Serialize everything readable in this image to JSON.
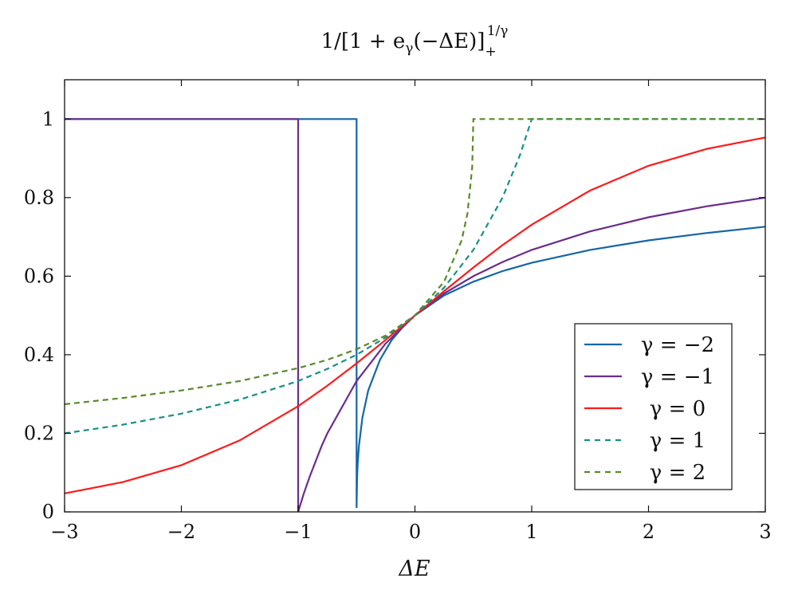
{
  "chart_data": {
    "type": "line",
    "title": {
      "main": "1/[1 + e",
      "sub": "γ",
      "mid": "(−ΔE)]",
      "sub2": "+",
      "sup": "1/γ"
    },
    "xlabel": "ΔE",
    "ylabel": "",
    "xlim": [
      -3,
      3
    ],
    "ylim": [
      0,
      1.1
    ],
    "xticks": [
      -3,
      -2,
      -1,
      0,
      1,
      2,
      3
    ],
    "xtick_labels": [
      "−3",
      "−2",
      "−1",
      "0",
      "1",
      "2",
      "3"
    ],
    "yticks": [
      0,
      0.2,
      0.4,
      0.6,
      0.8,
      1
    ],
    "ytick_labels": [
      "0",
      "0.2",
      "0.4",
      "0.6",
      "0.8",
      "1"
    ],
    "grid": false,
    "legend_position": "bottom-right",
    "series": [
      {
        "name": "γ = −2",
        "color": "#1466a8",
        "dash": false,
        "x": [
          -3,
          -0.5,
          -0.5,
          -0.4999,
          -0.495,
          -0.49,
          -0.48,
          -0.45,
          -0.4,
          -0.3,
          -0.2,
          -0.1,
          0,
          0.25,
          0.5,
          0.75,
          1,
          1.5,
          2,
          2.5,
          3
        ],
        "y": [
          1,
          1,
          0.01,
          0.014,
          0.091,
          0.124,
          0.167,
          0.24,
          0.309,
          0.387,
          0.437,
          0.472,
          0.5,
          0.551,
          0.586,
          0.613,
          0.634,
          0.667,
          0.691,
          0.71,
          0.726
        ]
      },
      {
        "name": "γ = −1",
        "color": "#6b2d8a",
        "dash": false,
        "x": [
          -3,
          -1,
          -1,
          -0.95,
          -0.9,
          -0.8,
          -0.75,
          -0.5,
          -0.25,
          0,
          0.25,
          0.5,
          0.75,
          1,
          1.5,
          2,
          2.5,
          3
        ],
        "y": [
          1,
          1,
          0,
          0.048,
          0.091,
          0.167,
          0.2,
          0.333,
          0.429,
          0.5,
          0.556,
          0.6,
          0.636,
          0.667,
          0.714,
          0.75,
          0.778,
          0.8
        ]
      },
      {
        "name": "γ = 0",
        "color": "#ff1a1a",
        "dash": false,
        "x": [
          -3,
          -2.5,
          -2,
          -1.5,
          -1,
          -0.75,
          -0.5,
          -0.25,
          0,
          0.25,
          0.5,
          0.75,
          1,
          1.5,
          2,
          2.5,
          3
        ],
        "y": [
          0.047,
          0.076,
          0.119,
          0.182,
          0.269,
          0.321,
          0.378,
          0.438,
          0.5,
          0.562,
          0.622,
          0.679,
          0.731,
          0.818,
          0.881,
          0.924,
          0.953
        ]
      },
      {
        "name": "γ = 1",
        "color": "#14918a",
        "dash": true,
        "x": [
          -3,
          -2.5,
          -2,
          -1.5,
          -1,
          -0.75,
          -0.5,
          -0.25,
          0,
          0.25,
          0.5,
          0.75,
          0.9,
          1,
          1.5,
          2,
          2.5,
          3
        ],
        "y": [
          0.2,
          0.222,
          0.25,
          0.286,
          0.333,
          0.364,
          0.4,
          0.444,
          0.5,
          0.571,
          0.667,
          0.8,
          0.909,
          1,
          1,
          1,
          1,
          1
        ]
      },
      {
        "name": "γ = 2",
        "color": "#5a8a28",
        "dash": true,
        "x": [
          -3,
          -2.5,
          -2,
          -1.5,
          -1,
          -0.75,
          -0.5,
          -0.25,
          0,
          0.25,
          0.4,
          0.45,
          0.49,
          0.5,
          1,
          2,
          3
        ],
        "y": [
          0.274,
          0.29,
          0.309,
          0.333,
          0.366,
          0.387,
          0.414,
          0.449,
          0.5,
          0.586,
          0.691,
          0.76,
          0.876,
          1,
          1,
          1,
          1
        ]
      }
    ]
  }
}
